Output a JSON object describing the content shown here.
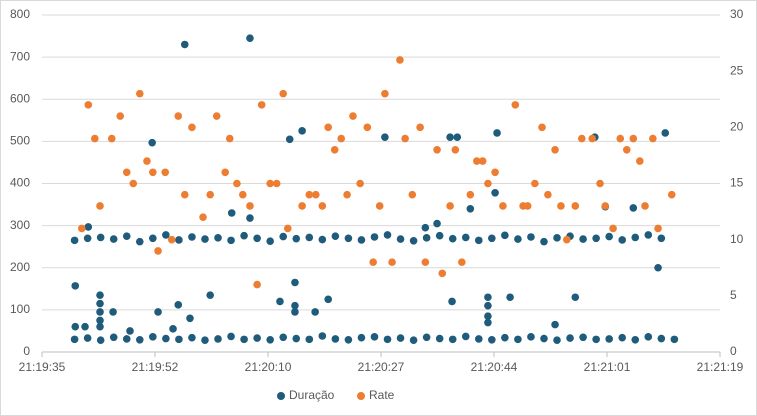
{
  "chart_data": {
    "type": "scatter",
    "xlim": [
      76775,
      76879
    ],
    "xticks": [
      {
        "value": 76775,
        "label": "21:19:35"
      },
      {
        "value": 76792.33,
        "label": "21:19:52"
      },
      {
        "value": 76809.67,
        "label": "21:20:10"
      },
      {
        "value": 76827,
        "label": "21:20:27"
      },
      {
        "value": 76844.33,
        "label": "21:20:44"
      },
      {
        "value": 76861.67,
        "label": "21:21:01"
      },
      {
        "value": 76879,
        "label": "21:21:19"
      }
    ],
    "ylim": [
      0,
      800
    ],
    "yticks": [
      0,
      100,
      200,
      300,
      400,
      500,
      600,
      700,
      800
    ],
    "y2lim": [
      0,
      30
    ],
    "y2ticks": [
      0,
      5,
      10,
      15,
      20,
      25,
      30
    ],
    "grid": true,
    "legend": "bottom",
    "series": [
      {
        "name": "Duração",
        "color": "#1f5b7a",
        "axis": "y",
        "x": [
          76780,
          76782,
          76784,
          76786,
          76788,
          76790,
          76792,
          76794,
          76796,
          76798,
          76800,
          76802,
          76804,
          76806,
          76808,
          76810,
          76812,
          76814,
          76816,
          76818,
          76820,
          76822,
          76824,
          76826,
          76828,
          76830,
          76832,
          76834,
          76836,
          76838,
          76840,
          76842,
          76844,
          76846,
          76848,
          76850,
          76852,
          76854,
          76856,
          76858,
          76860,
          76862,
          76864,
          76866,
          76868,
          76870,
          76872,
          76780,
          76782,
          76784,
          76786,
          76788,
          76790,
          76792,
          76794,
          76796,
          76798,
          76800,
          76802,
          76804,
          76806,
          76808,
          76810,
          76812,
          76814,
          76816,
          76818,
          76820,
          76822,
          76824,
          76826,
          76828,
          76830,
          76832,
          76834,
          76836,
          76838,
          76840,
          76842,
          76844,
          76846,
          76848,
          76850,
          76852,
          76854,
          76856,
          76858,
          76860,
          76862,
          76864,
          76866,
          76868,
          76870,
          76780.1,
          76780.1,
          76781.6,
          76782.1,
          76783.9,
          76783.9,
          76783.9,
          76783.9,
          76783.9,
          76785.9,
          76788.5,
          76791.9,
          76792.8,
          76795.1,
          76795.9,
          76796.9,
          76797.7,
          76800.8,
          76804.1,
          76806.9,
          76806.9,
          76811.5,
          76813.0,
          76813.8,
          76813.8,
          76813.8,
          76814.9,
          76816.9,
          76818.9,
          76827.6,
          76833.8,
          76835.6,
          76837.6,
          76837.9,
          76838.7,
          76840.7,
          76843.4,
          76843.4,
          76843.4,
          76843.4,
          76844.5,
          76844.8,
          76846.8,
          76853.7,
          76856.8,
          76859.8,
          76861.4,
          76865.7,
          76869.5,
          76870.6
        ],
        "values": [
          30,
          33,
          28,
          35,
          31,
          29,
          36,
          32,
          30,
          34,
          28,
          31,
          37,
          30,
          33,
          29,
          35,
          32,
          30,
          38,
          31,
          29,
          34,
          36,
          30,
          33,
          28,
          35,
          32,
          30,
          37,
          31,
          29,
          34,
          30,
          36,
          32,
          28,
          33,
          35,
          30,
          31,
          34,
          29,
          36,
          32,
          30,
          265,
          270,
          272,
          268,
          275,
          262,
          270,
          278,
          266,
          273,
          268,
          271,
          265,
          276,
          270,
          263,
          274,
          269,
          272,
          267,
          275,
          270,
          266,
          273,
          278,
          268,
          264,
          271,
          276,
          269,
          272,
          265,
          270,
          277,
          268,
          273,
          262,
          271,
          275,
          268,
          270,
          274,
          266,
          272,
          278,
          270,
          157,
          60,
          60,
          297,
          135,
          115,
          95,
          75,
          60,
          95,
          50,
          497,
          95,
          55,
          112,
          730,
          80,
          135,
          330,
          745,
          318,
          120,
          505,
          165,
          110,
          95,
          525,
          95,
          125,
          510,
          295,
          305,
          510,
          120,
          510,
          340,
          130,
          110,
          85,
          70,
          378,
          520,
          130,
          65,
          130,
          510,
          345,
          342,
          200,
          520
        ]
      },
      {
        "name": "Rate",
        "color": "#ed7d31",
        "axis": "y2",
        "x": [
          76781.1,
          76782.1,
          76783.1,
          76783.9,
          76785.7,
          76787.0,
          76788.0,
          76789.0,
          76790.0,
          76791.1,
          76792.0,
          76792.8,
          76793.9,
          76794.9,
          76795.9,
          76796.9,
          76798.0,
          76799.7,
          76800.8,
          76801.8,
          76803.1,
          76803.8,
          76804.9,
          76805.8,
          76806.9,
          76808.0,
          76808.7,
          76810.0,
          76811.0,
          76812.0,
          76812.7,
          76814.9,
          76816.0,
          76817.0,
          76818.0,
          76818.9,
          76819.9,
          76820.9,
          76821.8,
          76822.7,
          76823.8,
          76824.9,
          76825.8,
          76826.8,
          76827.6,
          76828.7,
          76829.9,
          76830.7,
          76831.8,
          76833.0,
          76833.8,
          76835.6,
          76836.4,
          76837.6,
          76838.4,
          76839.4,
          76840.7,
          76841.7,
          76842.6,
          76843.4,
          76844.5,
          76845.7,
          76847.6,
          76848.8,
          76849.5,
          76850.6,
          76851.7,
          76852.6,
          76853.7,
          76854.6,
          76855.5,
          76856.8,
          76857.8,
          76859.4,
          76860.6,
          76861.4,
          76862.6,
          76863.7,
          76864.7,
          76865.7,
          76866.7,
          76867.5,
          76868.7,
          76869.5,
          76871.6
        ],
        "values": [
          11,
          22,
          19,
          13,
          19,
          21,
          16,
          15,
          23,
          17,
          16,
          9,
          16,
          10,
          21,
          14,
          20,
          12,
          14,
          21,
          16,
          19,
          15,
          14,
          13,
          6,
          22,
          15,
          15,
          23,
          11,
          13,
          14,
          14,
          13,
          20,
          18,
          19,
          14,
          21,
          15,
          20,
          8,
          13,
          23,
          8,
          26,
          19,
          14,
          20,
          8,
          18,
          7,
          13,
          18,
          8,
          14,
          17,
          17,
          15,
          16,
          13,
          22,
          13,
          13,
          15,
          20,
          14,
          18,
          13,
          10,
          13,
          19,
          19,
          15,
          13,
          11,
          19,
          18,
          19,
          17,
          13,
          19,
          11,
          14
        ]
      }
    ]
  }
}
